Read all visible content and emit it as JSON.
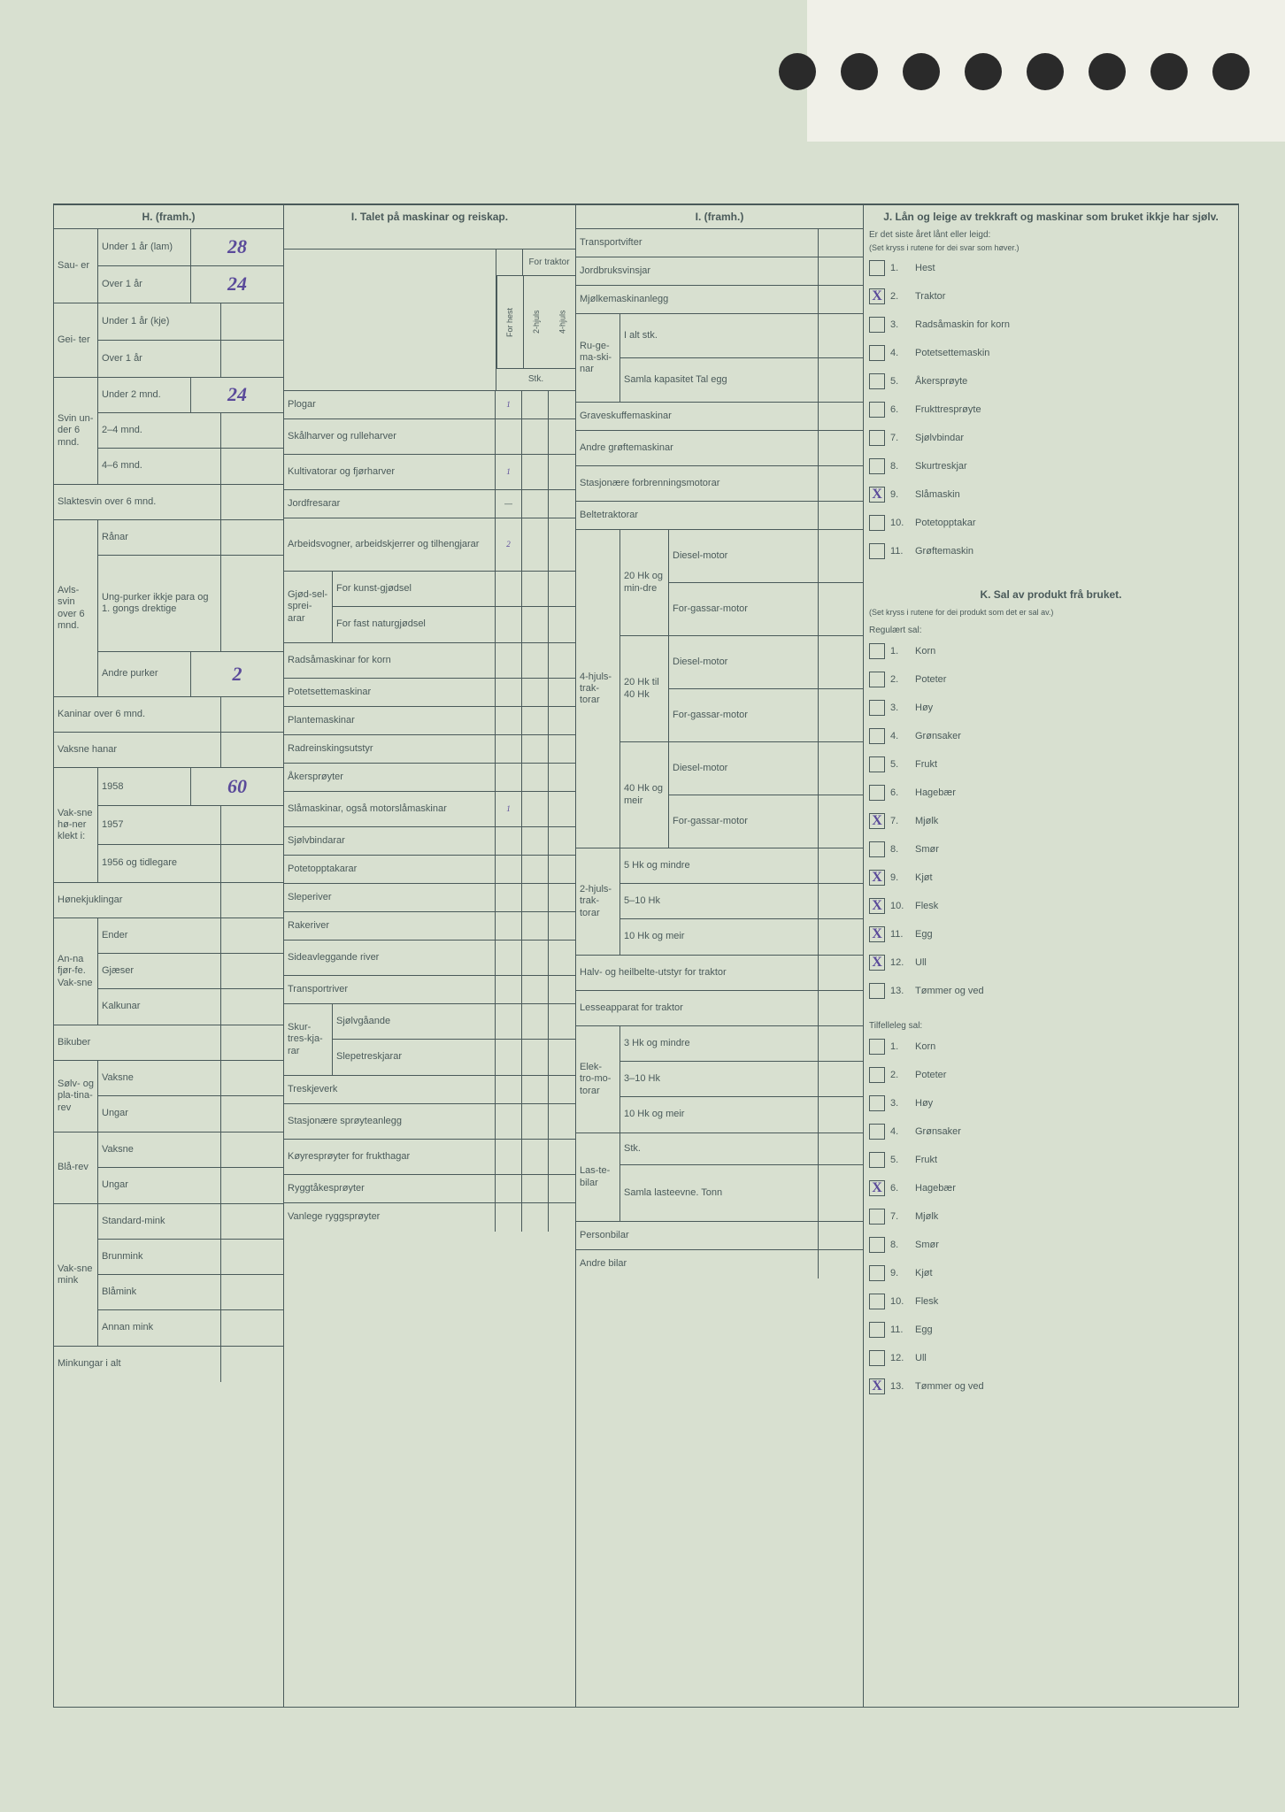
{
  "H": {
    "title": "H. (framh.)",
    "sauer": {
      "label": "Sau-\ner",
      "under1": "Under 1 år (lam)",
      "under1_val": "28",
      "over1": "Over 1 år",
      "over1_val": "24"
    },
    "geiter": {
      "label": "Gei-\nter",
      "under1": "Under 1 år (kje)",
      "over1": "Over 1 år"
    },
    "svin6": {
      "label": "Svin un-der 6 mnd.",
      "under2": "Under 2 mnd.",
      "under2_val": "24",
      "m24": "2–4 mnd.",
      "m46": "4–6 mnd."
    },
    "slaktesvin": "Slaktesvin over 6 mnd.",
    "avlssvin": {
      "label": "Avls-svin over 6 mnd.",
      "ranar": "Rånar",
      "ungpurker": "Ung-purker ikkje para og 1. gongs drektige",
      "andre": "Andre purker",
      "andre_val": "2"
    },
    "kaninar": "Kaninar over 6 mnd.",
    "hanar": "Vaksne hanar",
    "honer": {
      "label": "Vak-sne hø-ner klekt i:",
      "y1958": "1958",
      "y1958_val": "60",
      "y1957": "1957",
      "y1956": "1956 og tidlegare"
    },
    "honekjukling": "Hønekjuklingar",
    "fjorfe": {
      "label": "An-na fjør-fe. Vak-sne",
      "ender": "Ender",
      "gjaser": "Gjæser",
      "kalkunar": "Kalkunar"
    },
    "bikuber": "Bikuber",
    "solvrev": {
      "label": "Sølv- og pla-tina-rev",
      "vaksne": "Vaksne",
      "ungar": "Ungar"
    },
    "blarev": {
      "label": "Blå-rev",
      "vaksne": "Vaksne",
      "ungar": "Ungar"
    },
    "mink": {
      "label": "Vak-sne mink",
      "standard": "Standard-mink",
      "brun": "Brunmink",
      "bla": "Blåmink",
      "annan": "Annan mink"
    },
    "minkungar": "Minkungar i alt"
  },
  "I": {
    "title": "I. Talet på maskinar og reiskap.",
    "forhest": "For hest",
    "fortraktor": "For traktor",
    "h2": "2-hjuls",
    "h4": "4-hjuls",
    "stk": "Stk.",
    "plogar": "Plogar",
    "plogar_val": "1",
    "skalharver": "Skålharver og rulleharver",
    "kultivator": "Kultivatorar og fjørharver",
    "kultivator_val": "1",
    "jordfres": "Jordfresarar",
    "arbeidsvogn": "Arbeidsvogner, arbeidskjerrer og tilhengjarar",
    "arbeidsvogn_val": "2",
    "gjodsel": {
      "label": "Gjød-sel-sprei-arar",
      "kunst": "For kunst-gjødsel",
      "fast": "For fast naturgjødsel"
    },
    "radsa": "Radsåmaskinar for korn",
    "potetsette": "Potetsettemaskinar",
    "plante": "Plantemaskinar",
    "radreinsking": "Radreinskingsutstyr",
    "akersproyter": "Åkersprøyter",
    "slamaskin": "Slåmaskinar, også motorslåmaskinar",
    "slamaskin_val": "1",
    "sjolvbindar": "Sjølvbindarar",
    "potetopptakar": "Potetopptakarar",
    "sleperiver": "Sleperiver",
    "rakeriver": "Rakeriver",
    "sideavlegg": "Sideavleggande river",
    "transportriver": "Transportriver",
    "skurtresk": {
      "label": "Skur-tres-kja-rar",
      "sjolvg": "Sjølvgåande",
      "slepe": "Slepetreskjarar"
    },
    "treskjeverk": "Treskjeverk",
    "sproyteanlegg": "Stasjonære sprøyteanlegg",
    "koyresproyter": "Køyresprøyter for frukthagar",
    "ryggtake": "Ryggtåkesprøyter",
    "vanlegrygg": "Vanlege ryggsprøyter"
  },
  "I2": {
    "title": "I. (framh.)",
    "transportvifter": "Transportvifter",
    "jordbruksvinsjar": "Jordbruksvinsjar",
    "mjolke": "Mjølkemaskinanlegg",
    "ruge": {
      "label": "Ru-ge-ma-ski-nar",
      "ialt": "I alt stk.",
      "samla": "Samla kapasitet Tal egg"
    },
    "graveskuffe": "Graveskuffemaskinar",
    "groftemaskinar": "Andre grøftemaskinar",
    "forbrenning": "Stasjonære forbrenningsmotorar",
    "beltetraktor": "Beltetraktorar",
    "hk20": "20 Hk og min-dre",
    "hk2040": "20 Hk til 40 Hk",
    "hk40": "40 Hk og meir",
    "diesel": "Diesel-motor",
    "forgassar": "For-gassar-motor",
    "h4label": "4-hjuls-trak-torar",
    "h2label": "2-hjuls-trak-torar",
    "hk5": "5 Hk og mindre",
    "hk510": "5–10 Hk",
    "hk10": "10 Hk og meir",
    "halvbelte": "Halv- og heilbelte-utstyr for traktor",
    "lesseapp": "Lesseapparat for traktor",
    "elektro": {
      "label": "Elek-tro-mo-torar",
      "hk3": "3 Hk og mindre",
      "hk310": "3–10 Hk",
      "hk10": "10 Hk og meir"
    },
    "lastebilar": {
      "label": "Las-te-bilar",
      "stk": "Stk.",
      "samla": "Samla lasteevne. Tonn"
    },
    "personbilar": "Personbilar",
    "andrebilar": "Andre bilar"
  },
  "J": {
    "title": "J. Lån og leige av trekkraft og maskinar som bruket ikkje har sjølv.",
    "intro": "Er det siste året lånt eller leigd:",
    "note": "(Set kryss i rutene for dei svar som høver.)",
    "items": [
      {
        "n": "1.",
        "t": "Hest",
        "x": false
      },
      {
        "n": "2.",
        "t": "Traktor",
        "x": true
      },
      {
        "n": "3.",
        "t": "Radsåmaskin for korn",
        "x": false
      },
      {
        "n": "4.",
        "t": "Potetsettemaskin",
        "x": false
      },
      {
        "n": "5.",
        "t": "Åkersprøyte",
        "x": false
      },
      {
        "n": "6.",
        "t": "Frukttresprøyte",
        "x": false
      },
      {
        "n": "7.",
        "t": "Sjølvbindar",
        "x": false
      },
      {
        "n": "8.",
        "t": "Skurtreskjar",
        "x": false
      },
      {
        "n": "9.",
        "t": "Slåmaskin",
        "x": true
      },
      {
        "n": "10.",
        "t": "Potetopptakar",
        "x": false
      },
      {
        "n": "11.",
        "t": "Grøftemaskin",
        "x": false
      }
    ]
  },
  "K": {
    "title": "K. Sal av produkt frå bruket.",
    "note": "(Set kryss i rutene for dei produkt som det er sal av.)",
    "reg_title": "Regulært sal:",
    "reg": [
      {
        "n": "1.",
        "t": "Korn",
        "x": false
      },
      {
        "n": "2.",
        "t": "Poteter",
        "x": false
      },
      {
        "n": "3.",
        "t": "Høy",
        "x": false
      },
      {
        "n": "4.",
        "t": "Grønsaker",
        "x": false
      },
      {
        "n": "5.",
        "t": "Frukt",
        "x": false
      },
      {
        "n": "6.",
        "t": "Hagebær",
        "x": false
      },
      {
        "n": "7.",
        "t": "Mjølk",
        "x": true
      },
      {
        "n": "8.",
        "t": "Smør",
        "x": false
      },
      {
        "n": "9.",
        "t": "Kjøt",
        "x": true
      },
      {
        "n": "10.",
        "t": "Flesk",
        "x": true
      },
      {
        "n": "11.",
        "t": "Egg",
        "x": true
      },
      {
        "n": "12.",
        "t": "Ull",
        "x": true
      },
      {
        "n": "13.",
        "t": "Tømmer og ved",
        "x": false
      }
    ],
    "tilf_title": "Tilfelleleg sal:",
    "tilf": [
      {
        "n": "1.",
        "t": "Korn",
        "x": false
      },
      {
        "n": "2.",
        "t": "Poteter",
        "x": false
      },
      {
        "n": "3.",
        "t": "Høy",
        "x": false
      },
      {
        "n": "4.",
        "t": "Grønsaker",
        "x": false
      },
      {
        "n": "5.",
        "t": "Frukt",
        "x": false
      },
      {
        "n": "6.",
        "t": "Hagebær",
        "x": true
      },
      {
        "n": "7.",
        "t": "Mjølk",
        "x": false
      },
      {
        "n": "8.",
        "t": "Smør",
        "x": false
      },
      {
        "n": "9.",
        "t": "Kjøt",
        "x": false
      },
      {
        "n": "10.",
        "t": "Flesk",
        "x": false
      },
      {
        "n": "11.",
        "t": "Egg",
        "x": false
      },
      {
        "n": "12.",
        "t": "Ull",
        "x": false
      },
      {
        "n": "13.",
        "t": "Tømmer og ved",
        "x": true
      }
    ]
  }
}
